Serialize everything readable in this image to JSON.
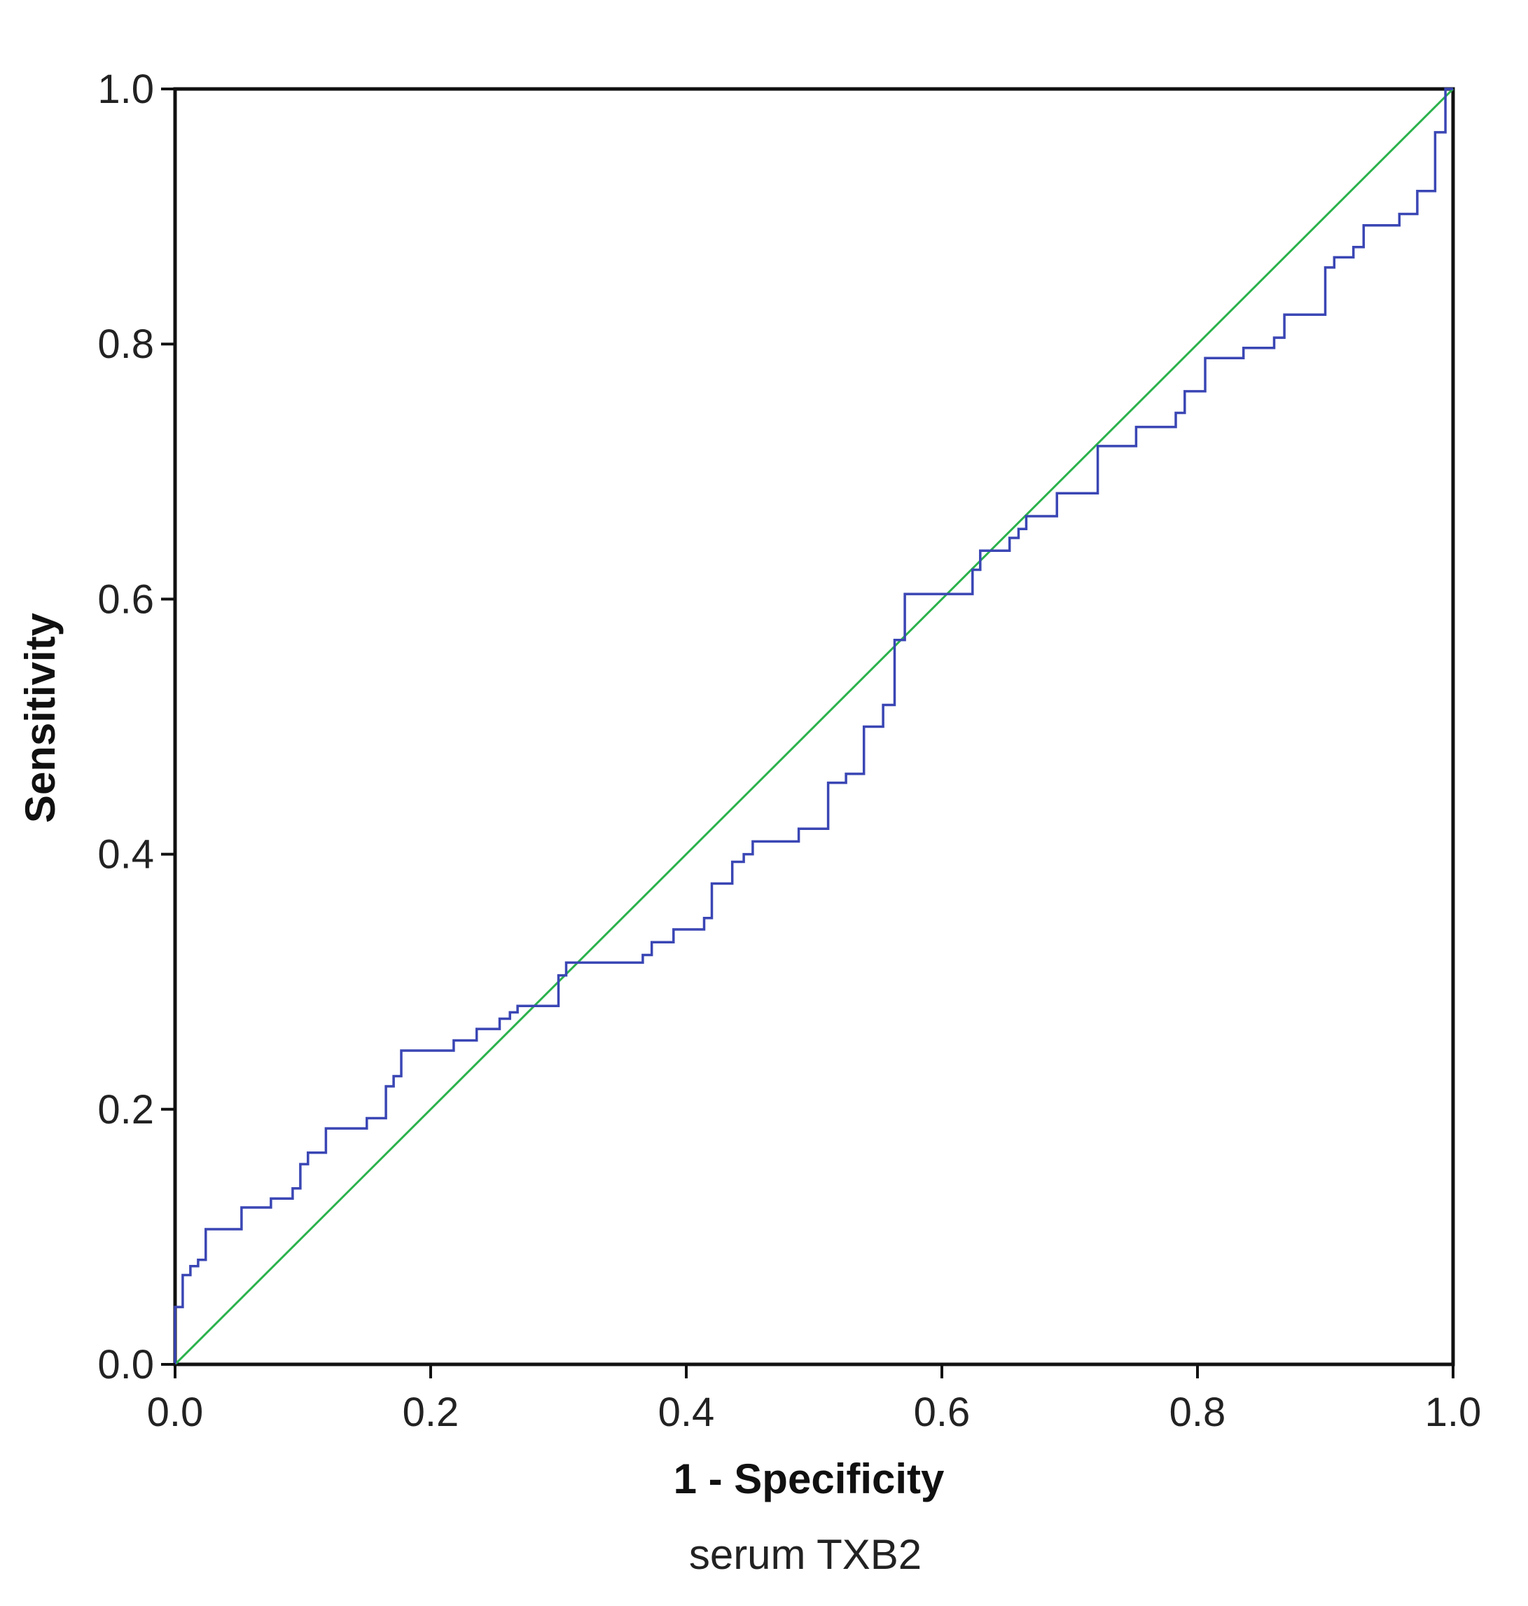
{
  "chart_data": {
    "type": "line",
    "title": "",
    "caption": "serum TXB2",
    "xlabel": "1 - Specificity",
    "ylabel": "Sensitivity",
    "xlim": [
      0.0,
      1.0
    ],
    "ylim": [
      0.0,
      1.0
    ],
    "x_ticks": [
      "0.0",
      "0.2",
      "0.4",
      "0.6",
      "0.8",
      "1.0"
    ],
    "y_ticks": [
      "0.0",
      "0.2",
      "0.4",
      "0.6",
      "0.8",
      "1.0"
    ],
    "grid": false,
    "legend": "none",
    "colors": {
      "roc": "#3a46b4",
      "reference": "#2bb24c",
      "frame": "#111111"
    },
    "series": [
      {
        "role": "roc-curve",
        "points": [
          [
            0.0,
            0.0
          ],
          [
            0.0,
            0.045
          ],
          [
            0.006,
            0.045
          ],
          [
            0.006,
            0.07
          ],
          [
            0.012,
            0.07
          ],
          [
            0.012,
            0.077
          ],
          [
            0.018,
            0.077
          ],
          [
            0.018,
            0.082
          ],
          [
            0.024,
            0.082
          ],
          [
            0.024,
            0.106
          ],
          [
            0.052,
            0.106
          ],
          [
            0.052,
            0.123
          ],
          [
            0.075,
            0.123
          ],
          [
            0.075,
            0.13
          ],
          [
            0.092,
            0.13
          ],
          [
            0.092,
            0.138
          ],
          [
            0.098,
            0.138
          ],
          [
            0.098,
            0.157
          ],
          [
            0.104,
            0.157
          ],
          [
            0.104,
            0.166
          ],
          [
            0.118,
            0.166
          ],
          [
            0.118,
            0.185
          ],
          [
            0.15,
            0.185
          ],
          [
            0.15,
            0.193
          ],
          [
            0.165,
            0.193
          ],
          [
            0.165,
            0.218
          ],
          [
            0.171,
            0.218
          ],
          [
            0.171,
            0.226
          ],
          [
            0.177,
            0.226
          ],
          [
            0.177,
            0.246
          ],
          [
            0.218,
            0.246
          ],
          [
            0.218,
            0.254
          ],
          [
            0.236,
            0.254
          ],
          [
            0.236,
            0.263
          ],
          [
            0.254,
            0.263
          ],
          [
            0.254,
            0.271
          ],
          [
            0.262,
            0.271
          ],
          [
            0.262,
            0.276
          ],
          [
            0.268,
            0.276
          ],
          [
            0.268,
            0.281
          ],
          [
            0.3,
            0.281
          ],
          [
            0.3,
            0.305
          ],
          [
            0.306,
            0.305
          ],
          [
            0.306,
            0.315
          ],
          [
            0.366,
            0.315
          ],
          [
            0.366,
            0.321
          ],
          [
            0.373,
            0.321
          ],
          [
            0.373,
            0.331
          ],
          [
            0.39,
            0.331
          ],
          [
            0.39,
            0.341
          ],
          [
            0.414,
            0.341
          ],
          [
            0.414,
            0.35
          ],
          [
            0.42,
            0.35
          ],
          [
            0.42,
            0.377
          ],
          [
            0.436,
            0.377
          ],
          [
            0.436,
            0.394
          ],
          [
            0.445,
            0.394
          ],
          [
            0.445,
            0.4
          ],
          [
            0.452,
            0.4
          ],
          [
            0.452,
            0.41
          ],
          [
            0.488,
            0.41
          ],
          [
            0.488,
            0.42
          ],
          [
            0.511,
            0.42
          ],
          [
            0.511,
            0.456
          ],
          [
            0.525,
            0.456
          ],
          [
            0.525,
            0.463
          ],
          [
            0.539,
            0.463
          ],
          [
            0.539,
            0.5
          ],
          [
            0.554,
            0.5
          ],
          [
            0.554,
            0.517
          ],
          [
            0.563,
            0.517
          ],
          [
            0.563,
            0.568
          ],
          [
            0.571,
            0.568
          ],
          [
            0.571,
            0.604
          ],
          [
            0.624,
            0.604
          ],
          [
            0.624,
            0.623
          ],
          [
            0.63,
            0.623
          ],
          [
            0.63,
            0.638
          ],
          [
            0.653,
            0.638
          ],
          [
            0.653,
            0.648
          ],
          [
            0.66,
            0.648
          ],
          [
            0.66,
            0.655
          ],
          [
            0.666,
            0.655
          ],
          [
            0.666,
            0.665
          ],
          [
            0.69,
            0.665
          ],
          [
            0.69,
            0.683
          ],
          [
            0.722,
            0.683
          ],
          [
            0.722,
            0.72
          ],
          [
            0.752,
            0.72
          ],
          [
            0.752,
            0.735
          ],
          [
            0.783,
            0.735
          ],
          [
            0.783,
            0.746
          ],
          [
            0.79,
            0.746
          ],
          [
            0.79,
            0.763
          ],
          [
            0.806,
            0.763
          ],
          [
            0.806,
            0.789
          ],
          [
            0.836,
            0.789
          ],
          [
            0.836,
            0.797
          ],
          [
            0.86,
            0.797
          ],
          [
            0.86,
            0.805
          ],
          [
            0.868,
            0.805
          ],
          [
            0.868,
            0.823
          ],
          [
            0.9,
            0.823
          ],
          [
            0.9,
            0.86
          ],
          [
            0.907,
            0.86
          ],
          [
            0.907,
            0.868
          ],
          [
            0.922,
            0.868
          ],
          [
            0.922,
            0.876
          ],
          [
            0.93,
            0.876
          ],
          [
            0.93,
            0.893
          ],
          [
            0.958,
            0.893
          ],
          [
            0.958,
            0.902
          ],
          [
            0.972,
            0.902
          ],
          [
            0.972,
            0.92
          ],
          [
            0.986,
            0.92
          ],
          [
            0.986,
            0.966
          ],
          [
            0.994,
            0.966
          ],
          [
            0.994,
            1.0
          ],
          [
            1.0,
            1.0
          ]
        ]
      },
      {
        "role": "reference-line",
        "points": [
          [
            0.0,
            0.0
          ],
          [
            1.0,
            1.0
          ]
        ]
      }
    ]
  }
}
